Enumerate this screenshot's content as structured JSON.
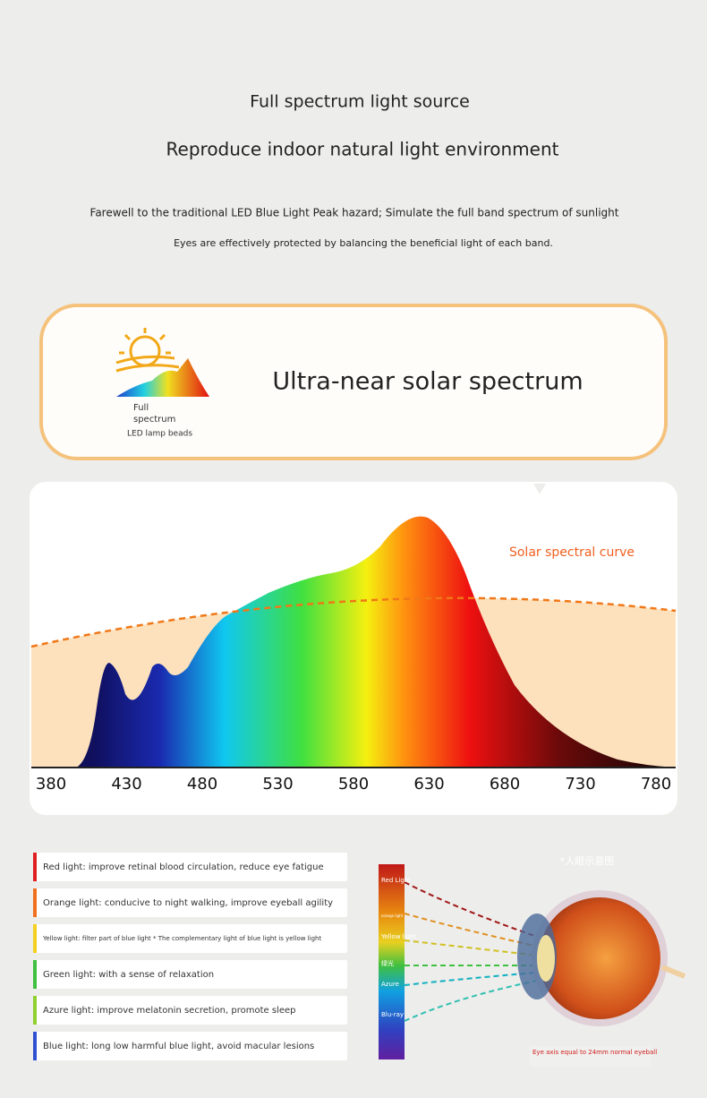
{
  "header": {
    "title": "Full spectrum light source",
    "subtitle": "Reproduce indoor natural light environment",
    "lines": [
      "Farewell to the traditional LED Blue Light Peak hazard; Simulate the full band spectrum of sunlight",
      "Eyes are effectively protected by balancing the beneficial light of each band."
    ]
  },
  "banner": {
    "icon_lines": [
      "Full",
      "spectrum"
    ],
    "icon_caption": "LED lamp beads",
    "headline": "Ultra-near solar spectrum"
  },
  "spectrum": {
    "curve_label": "Solar spectral curve",
    "axis_labels": [
      380,
      430,
      480,
      530,
      580,
      630,
      680,
      730,
      780
    ]
  },
  "lights": [
    {
      "text": "Red light: improve retinal blood circulation, reduce eye fatigue",
      "color": "#e02020"
    },
    {
      "text": "Orange light: conducive to night walking, improve eyeball agility",
      "color": "#f07020"
    },
    {
      "text": "Yellow light: filter part of blue light * The complementary light of blue light is yellow light",
      "color": "#f5d020"
    },
    {
      "text": "Green light: with a sense of relaxation",
      "color": "#40c040"
    },
    {
      "text": "Azure light: improve melatonin secretion, promote sleep",
      "color": "#90d030"
    },
    {
      "text": "Blue light: long low harmful blue light, avoid macular lesions",
      "color": "#3050d0"
    }
  ],
  "eye": {
    "note": "*人眼示意图",
    "strip_labels": [
      "Red Light",
      "orange light",
      "Yellow light",
      "绿光",
      "Azure",
      "Blu-ray"
    ],
    "caption": "Eye axis equal to 24mm normal eyeball"
  }
}
